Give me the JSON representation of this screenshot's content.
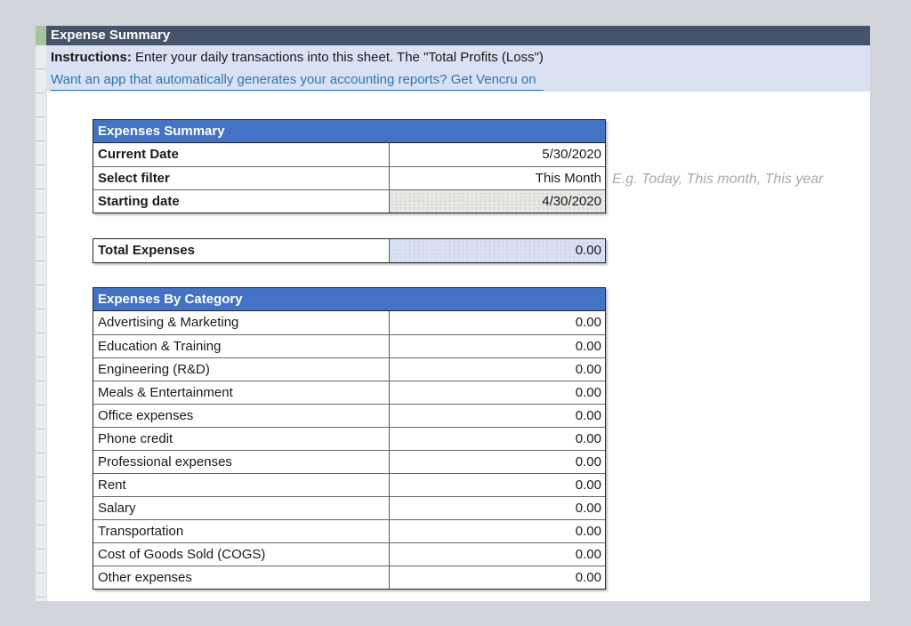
{
  "colors": {
    "page_bg": "#D2D5DC",
    "title_bar_bg": "#44546A",
    "table_header_bg": "#4472C4",
    "band_bg": "#D9E1F2",
    "link_blue": "#2E75B6",
    "accent_green": "#A6C59B"
  },
  "title_bar": {
    "label": "Expense Summary"
  },
  "instructions": {
    "label": "Instructions:",
    "text": " Enter your daily transactions into this sheet. The \"Total Profits (Loss\")"
  },
  "link": {
    "text": "Want an app that automatically generates your accounting reports? Get Vencru on"
  },
  "summary_table": {
    "header": "Expenses Summary",
    "rows": [
      {
        "label": "Current Date",
        "value": "5/30/2020"
      },
      {
        "label": "Select filter",
        "value": "This Month"
      },
      {
        "label": "Starting date",
        "value": "4/30/2020"
      }
    ],
    "filter_hint": "E.g. Today, This month, This year"
  },
  "total": {
    "label": "Total Expenses",
    "value": "0.00"
  },
  "category_table": {
    "header": "Expenses By Category",
    "rows": [
      {
        "label": "Advertising & Marketing",
        "value": "0.00"
      },
      {
        "label": "Education & Training",
        "value": "0.00"
      },
      {
        "label": "Engineering (R&D)",
        "value": "0.00"
      },
      {
        "label": "Meals & Entertainment",
        "value": "0.00"
      },
      {
        "label": "Office expenses",
        "value": "0.00"
      },
      {
        "label": "Phone credit",
        "value": "0.00"
      },
      {
        "label": "Professional expenses",
        "value": "0.00"
      },
      {
        "label": "Rent",
        "value": "0.00"
      },
      {
        "label": "Salary",
        "value": "0.00"
      },
      {
        "label": "Transportation",
        "value": "0.00"
      },
      {
        "label": "Cost of Goods Sold (COGS)",
        "value": "0.00"
      },
      {
        "label": "Other expenses",
        "value": "0.00"
      }
    ]
  }
}
